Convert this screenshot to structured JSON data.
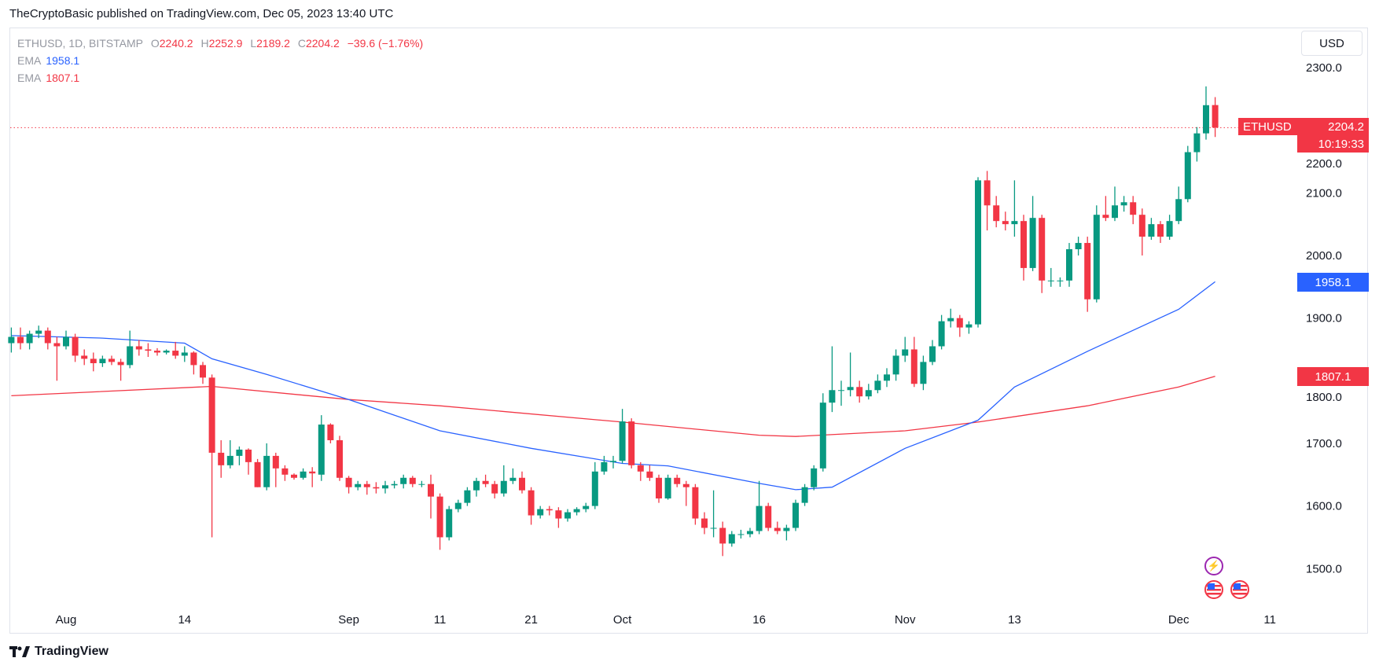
{
  "header": {
    "published": "TheCryptoBasic published on TradingView.com, Dec 05, 2023 13:40 UTC"
  },
  "legend": {
    "symbol": "ETHUSD, 1D, BITSTAMP",
    "o_label": "O",
    "o": "2240.2",
    "h_label": "H",
    "h": "2252.9",
    "l_label": "L",
    "l": "2189.2",
    "c_label": "C",
    "c": "2204.2",
    "change": "−39.6 (−1.76%)",
    "ema1_label": "EMA",
    "ema1": "1958.1",
    "ema2_label": "EMA",
    "ema2": "1807.1"
  },
  "currency": "USD",
  "badges": {
    "symbol": "ETHUSD",
    "price": "2204.2",
    "countdown": "10:19:33",
    "ema_fast": "1958.1",
    "ema_slow": "1807.1"
  },
  "colors": {
    "up": "#089981",
    "down": "#f23645",
    "ema_fast": "#2962ff",
    "ema_slow": "#f23645"
  },
  "footer": {
    "brand": "TradingView"
  },
  "chart_data": {
    "type": "candlestick",
    "title": "ETHUSD, 1D, BITSTAMP",
    "start_date": "2023-07-26",
    "ylim": [
      1440,
      2340
    ],
    "y_ticks": [
      "1500.0",
      "1600.0",
      "1700.0",
      "1800.0",
      "1900.0",
      "2000.0",
      "2100.0",
      "2200.0",
      "2300.0"
    ],
    "x_ticks": [
      {
        "label": "Aug",
        "index": 6
      },
      {
        "label": "14",
        "index": 19
      },
      {
        "label": "Sep",
        "index": 37
      },
      {
        "label": "11",
        "index": 47
      },
      {
        "label": "21",
        "index": 57
      },
      {
        "label": "Oct",
        "index": 67
      },
      {
        "label": "16",
        "index": 82
      },
      {
        "label": "Nov",
        "index": 98
      },
      {
        "label": "13",
        "index": 110
      },
      {
        "label": "Dec",
        "index": 128
      },
      {
        "label": "11",
        "index": 138
      }
    ],
    "ohlc": [
      [
        1860,
        1885,
        1845,
        1870
      ],
      [
        1870,
        1885,
        1850,
        1860
      ],
      [
        1860,
        1880,
        1850,
        1875
      ],
      [
        1875,
        1888,
        1868,
        1880
      ],
      [
        1880,
        1885,
        1850,
        1860
      ],
      [
        1860,
        1870,
        1800,
        1855
      ],
      [
        1855,
        1880,
        1850,
        1870
      ],
      [
        1870,
        1875,
        1830,
        1840
      ],
      [
        1840,
        1850,
        1825,
        1835
      ],
      [
        1835,
        1845,
        1815,
        1828
      ],
      [
        1828,
        1840,
        1822,
        1835
      ],
      [
        1835,
        1840,
        1825,
        1830
      ],
      [
        1830,
        1835,
        1800,
        1825
      ],
      [
        1825,
        1880,
        1820,
        1855
      ],
      [
        1855,
        1865,
        1840,
        1850
      ],
      [
        1850,
        1860,
        1838,
        1848
      ],
      [
        1848,
        1852,
        1840,
        1845
      ],
      [
        1845,
        1850,
        1842,
        1848
      ],
      [
        1848,
        1862,
        1835,
        1840
      ],
      [
        1840,
        1855,
        1830,
        1845
      ],
      [
        1845,
        1847,
        1810,
        1825
      ],
      [
        1825,
        1830,
        1795,
        1805
      ],
      [
        1805,
        1810,
        1550,
        1685
      ],
      [
        1685,
        1705,
        1645,
        1665
      ],
      [
        1665,
        1705,
        1660,
        1680
      ],
      [
        1680,
        1695,
        1665,
        1690
      ],
      [
        1690,
        1692,
        1650,
        1670
      ],
      [
        1670,
        1675,
        1630,
        1630
      ],
      [
        1630,
        1700,
        1625,
        1680
      ],
      [
        1680,
        1685,
        1630,
        1660
      ],
      [
        1660,
        1665,
        1640,
        1650
      ],
      [
        1650,
        1652,
        1642,
        1645
      ],
      [
        1645,
        1660,
        1642,
        1655
      ],
      [
        1655,
        1662,
        1630,
        1652
      ],
      [
        1650,
        1745,
        1640,
        1730
      ],
      [
        1730,
        1732,
        1700,
        1705
      ],
      [
        1705,
        1712,
        1640,
        1645
      ],
      [
        1645,
        1648,
        1620,
        1630
      ],
      [
        1630,
        1640,
        1625,
        1635
      ],
      [
        1635,
        1640,
        1618,
        1630
      ],
      [
        1630,
        1638,
        1620,
        1628
      ],
      [
        1628,
        1640,
        1620,
        1633
      ],
      [
        1633,
        1640,
        1628,
        1635
      ],
      [
        1635,
        1650,
        1628,
        1645
      ],
      [
        1645,
        1648,
        1630,
        1635
      ],
      [
        1635,
        1640,
        1630,
        1635
      ],
      [
        1635,
        1650,
        1580,
        1615
      ],
      [
        1615,
        1620,
        1530,
        1550
      ],
      [
        1550,
        1600,
        1545,
        1595
      ],
      [
        1595,
        1610,
        1590,
        1605
      ],
      [
        1605,
        1630,
        1600,
        1625
      ],
      [
        1625,
        1645,
        1615,
        1640
      ],
      [
        1640,
        1650,
        1630,
        1635
      ],
      [
        1635,
        1640,
        1612,
        1620
      ],
      [
        1620,
        1665,
        1615,
        1640
      ],
      [
        1640,
        1660,
        1635,
        1645
      ],
      [
        1645,
        1655,
        1620,
        1625
      ],
      [
        1625,
        1630,
        1570,
        1585
      ],
      [
        1585,
        1600,
        1580,
        1595
      ],
      [
        1595,
        1600,
        1585,
        1593
      ],
      [
        1593,
        1598,
        1565,
        1580
      ],
      [
        1580,
        1595,
        1575,
        1590
      ],
      [
        1590,
        1598,
        1585,
        1595
      ],
      [
        1595,
        1605,
        1590,
        1600
      ],
      [
        1600,
        1670,
        1595,
        1655
      ],
      [
        1655,
        1680,
        1650,
        1670
      ],
      [
        1670,
        1680,
        1660,
        1672
      ],
      [
        1672,
        1755,
        1668,
        1735
      ],
      [
        1735,
        1740,
        1660,
        1665
      ],
      [
        1665,
        1670,
        1640,
        1655
      ],
      [
        1655,
        1665,
        1640,
        1645
      ],
      [
        1645,
        1650,
        1605,
        1612
      ],
      [
        1612,
        1650,
        1610,
        1645
      ],
      [
        1645,
        1650,
        1630,
        1635
      ],
      [
        1635,
        1640,
        1600,
        1630
      ],
      [
        1630,
        1635,
        1570,
        1580
      ],
      [
        1580,
        1590,
        1555,
        1565
      ],
      [
        1565,
        1625,
        1550,
        1565
      ],
      [
        1565,
        1575,
        1520,
        1540
      ],
      [
        1540,
        1560,
        1535,
        1555
      ],
      [
        1555,
        1562,
        1548,
        1555
      ],
      [
        1555,
        1565,
        1550,
        1560
      ],
      [
        1560,
        1640,
        1555,
        1600
      ],
      [
        1600,
        1605,
        1560,
        1565
      ],
      [
        1565,
        1575,
        1555,
        1560
      ],
      [
        1560,
        1570,
        1545,
        1565
      ],
      [
        1565,
        1610,
        1560,
        1605
      ],
      [
        1605,
        1635,
        1600,
        1630
      ],
      [
        1630,
        1665,
        1625,
        1660
      ],
      [
        1660,
        1780,
        1655,
        1765
      ],
      [
        1765,
        1855,
        1750,
        1785
      ],
      [
        1785,
        1800,
        1760,
        1785
      ],
      [
        1785,
        1845,
        1775,
        1790
      ],
      [
        1790,
        1800,
        1765,
        1775
      ],
      [
        1775,
        1795,
        1770,
        1785
      ],
      [
        1785,
        1810,
        1780,
        1800
      ],
      [
        1800,
        1820,
        1790,
        1810
      ],
      [
        1810,
        1850,
        1800,
        1840
      ],
      [
        1840,
        1870,
        1830,
        1850
      ],
      [
        1850,
        1870,
        1790,
        1795
      ],
      [
        1795,
        1840,
        1785,
        1830
      ],
      [
        1830,
        1865,
        1825,
        1855
      ],
      [
        1855,
        1905,
        1850,
        1895
      ],
      [
        1895,
        1915,
        1885,
        1900
      ],
      [
        1900,
        1905,
        1870,
        1885
      ],
      [
        1885,
        1895,
        1875,
        1890
      ],
      [
        1890,
        2125,
        1885,
        2120
      ],
      [
        2120,
        2135,
        2040,
        2080
      ],
      [
        2080,
        2095,
        2045,
        2055
      ],
      [
        2055,
        2070,
        2040,
        2050
      ],
      [
        2050,
        2120,
        2030,
        2055
      ],
      [
        2055,
        2065,
        1960,
        1980
      ],
      [
        1980,
        2095,
        1975,
        2060
      ],
      [
        2060,
        2065,
        1940,
        1960
      ],
      [
        1960,
        1980,
        1950,
        1960
      ],
      [
        1960,
        1965,
        1950,
        1960
      ],
      [
        1960,
        2020,
        1950,
        2010
      ],
      [
        2010,
        2030,
        2000,
        2020
      ],
      [
        2020,
        2030,
        1910,
        1930
      ],
      [
        1930,
        2080,
        1925,
        2065
      ],
      [
        2065,
        2095,
        2055,
        2060
      ],
      [
        2060,
        2110,
        2055,
        2080
      ],
      [
        2080,
        2095,
        2070,
        2085
      ],
      [
        2085,
        2095,
        2050,
        2065
      ],
      [
        2065,
        2075,
        2000,
        2030
      ],
      [
        2030,
        2060,
        2025,
        2050
      ],
      [
        2050,
        2055,
        2020,
        2030
      ],
      [
        2030,
        2065,
        2025,
        2055
      ],
      [
        2055,
        2110,
        2050,
        2090
      ],
      [
        2090,
        2175,
        2085,
        2165
      ],
      [
        2165,
        2205,
        2150,
        2195
      ],
      [
        2195,
        2270,
        2185,
        2240
      ],
      [
        2240.2,
        2252.9,
        2189.2,
        2204.2
      ]
    ],
    "ema_fast": {
      "name": "EMA",
      "last": 1958.1,
      "points": [
        [
          0,
          1872
        ],
        [
          10,
          1868
        ],
        [
          19,
          1860
        ],
        [
          22,
          1835
        ],
        [
          28,
          1810
        ],
        [
          37,
          1770
        ],
        [
          47,
          1720
        ],
        [
          57,
          1692
        ],
        [
          67,
          1668
        ],
        [
          72,
          1664
        ],
        [
          82,
          1636
        ],
        [
          86,
          1626
        ],
        [
          90,
          1630
        ],
        [
          98,
          1692
        ],
        [
          106,
          1737
        ],
        [
          110,
          1790
        ],
        [
          118,
          1847
        ],
        [
          128,
          1914
        ],
        [
          132,
          1958.1
        ]
      ]
    },
    "ema_slow": {
      "name": "EMA",
      "last": 1807.1,
      "points": [
        [
          0,
          1776
        ],
        [
          22,
          1791
        ],
        [
          37,
          1770
        ],
        [
          47,
          1760
        ],
        [
          67,
          1734
        ],
        [
          82,
          1713
        ],
        [
          86,
          1711
        ],
        [
          98,
          1720
        ],
        [
          106,
          1734
        ],
        [
          118,
          1760
        ],
        [
          128,
          1790
        ],
        [
          132,
          1807.1
        ]
      ]
    }
  }
}
